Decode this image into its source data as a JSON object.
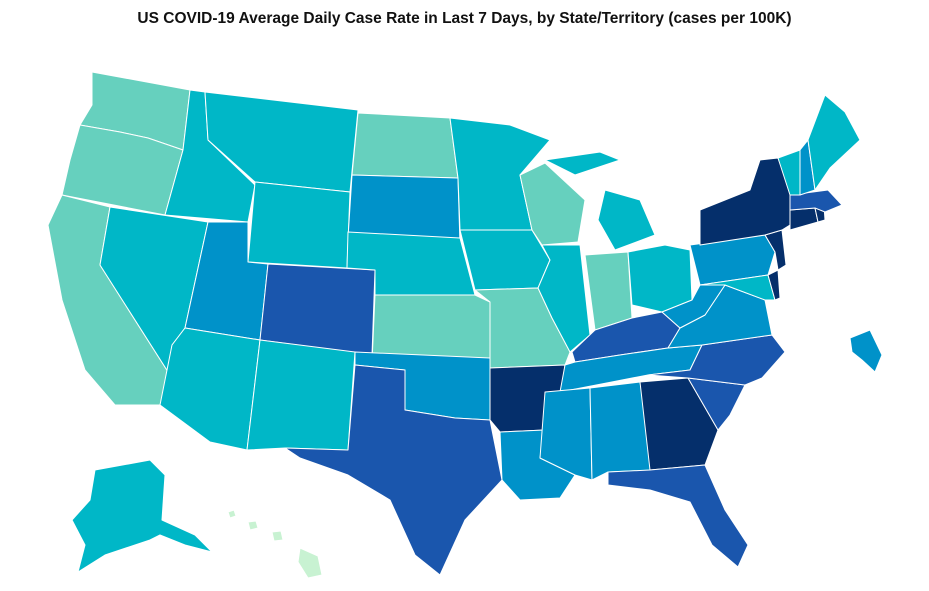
{
  "title": "US COVID-19 Average Daily Case Rate in Last 7 Days, by State/Territory (cases per 100K)",
  "palette": {
    "lowest": "#c8f2d2",
    "low": "#66d0be",
    "mid": "#00b7c7",
    "midhigh": "#0092c9",
    "high": "#1a56ad",
    "highest": "#052f6b"
  },
  "states": [
    {
      "id": "WA",
      "level": "low"
    },
    {
      "id": "OR",
      "level": "low"
    },
    {
      "id": "CA",
      "level": "low"
    },
    {
      "id": "ID",
      "level": "mid"
    },
    {
      "id": "NV",
      "level": "mid"
    },
    {
      "id": "MT",
      "level": "mid"
    },
    {
      "id": "WY",
      "level": "mid"
    },
    {
      "id": "UT",
      "level": "midhigh"
    },
    {
      "id": "AZ",
      "level": "mid"
    },
    {
      "id": "CO",
      "level": "high"
    },
    {
      "id": "NM",
      "level": "mid"
    },
    {
      "id": "ND",
      "level": "low"
    },
    {
      "id": "SD",
      "level": "midhigh"
    },
    {
      "id": "NE",
      "level": "mid"
    },
    {
      "id": "KS",
      "level": "low"
    },
    {
      "id": "OK",
      "level": "midhigh"
    },
    {
      "id": "TX",
      "level": "high"
    },
    {
      "id": "MN",
      "level": "mid"
    },
    {
      "id": "IA",
      "level": "mid"
    },
    {
      "id": "MO",
      "level": "low"
    },
    {
      "id": "AR",
      "level": "highest"
    },
    {
      "id": "LA",
      "level": "midhigh"
    },
    {
      "id": "WI",
      "level": "low"
    },
    {
      "id": "IL",
      "level": "mid"
    },
    {
      "id": "MI",
      "level": "mid"
    },
    {
      "id": "IN",
      "level": "low"
    },
    {
      "id": "OH",
      "level": "mid"
    },
    {
      "id": "KY",
      "level": "high"
    },
    {
      "id": "TN",
      "level": "midhigh"
    },
    {
      "id": "MS",
      "level": "midhigh"
    },
    {
      "id": "AL",
      "level": "midhigh"
    },
    {
      "id": "GA",
      "level": "highest"
    },
    {
      "id": "FL",
      "level": "high"
    },
    {
      "id": "SC",
      "level": "high"
    },
    {
      "id": "NC",
      "level": "high"
    },
    {
      "id": "VA",
      "level": "midhigh"
    },
    {
      "id": "WV",
      "level": "midhigh"
    },
    {
      "id": "PA",
      "level": "midhigh"
    },
    {
      "id": "NY",
      "level": "highest"
    },
    {
      "id": "NJ",
      "level": "highest"
    },
    {
      "id": "DE",
      "level": "highest"
    },
    {
      "id": "MD",
      "level": "mid"
    },
    {
      "id": "CT",
      "level": "highest"
    },
    {
      "id": "RI",
      "level": "highest"
    },
    {
      "id": "MA",
      "level": "high"
    },
    {
      "id": "VT",
      "level": "mid"
    },
    {
      "id": "NH",
      "level": "midhigh"
    },
    {
      "id": "ME",
      "level": "mid"
    },
    {
      "id": "AK",
      "level": "mid"
    },
    {
      "id": "HI",
      "level": "lowest"
    },
    {
      "id": "PR",
      "level": "midhigh"
    }
  ]
}
